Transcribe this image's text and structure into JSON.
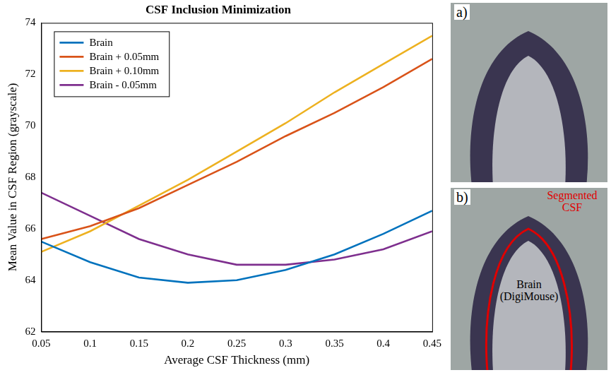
{
  "chart_data": {
    "type": "line",
    "title": "CSF Inclusion Minimization",
    "x_label": "Average CSF Thickness (mm)",
    "y_label": "Mean Value in CSF Region (grayscale)",
    "x": [
      0.05,
      0.1,
      0.15,
      0.2,
      0.25,
      0.3,
      0.35,
      0.4,
      0.45
    ],
    "series": [
      {
        "name": "Brain",
        "color": "#0072bd",
        "values": [
          65.5,
          64.7,
          64.1,
          63.9,
          64.0,
          64.4,
          65.0,
          65.8,
          66.7
        ]
      },
      {
        "name": "Brain + 0.05mm",
        "color": "#d95319",
        "values": [
          65.6,
          66.1,
          66.8,
          67.7,
          68.6,
          69.6,
          70.5,
          71.5,
          72.6
        ]
      },
      {
        "name": "Brain + 0.10mm",
        "color": "#edb120",
        "values": [
          65.1,
          65.9,
          66.9,
          67.9,
          69.0,
          70.1,
          71.3,
          72.4,
          73.5
        ]
      },
      {
        "name": "Brain - 0.05mm",
        "color": "#7e2f8e",
        "values": [
          67.4,
          66.5,
          65.6,
          65.0,
          64.6,
          64.6,
          64.8,
          65.2,
          65.9
        ]
      }
    ],
    "xlim": [
      0.05,
      0.45
    ],
    "xticks": [
      0.05,
      0.1,
      0.15,
      0.2,
      0.25,
      0.3,
      0.35,
      0.4,
      0.45
    ],
    "ylim": [
      62,
      74
    ],
    "yticks": [
      62,
      64,
      66,
      68,
      70,
      72,
      74
    ],
    "grid": false,
    "legend": "upper left"
  },
  "panels": [
    {
      "label": "a)"
    },
    {
      "label": "b)",
      "annotations": [
        "Segmented CSF",
        "Brain (DigiMouse)"
      ]
    }
  ]
}
